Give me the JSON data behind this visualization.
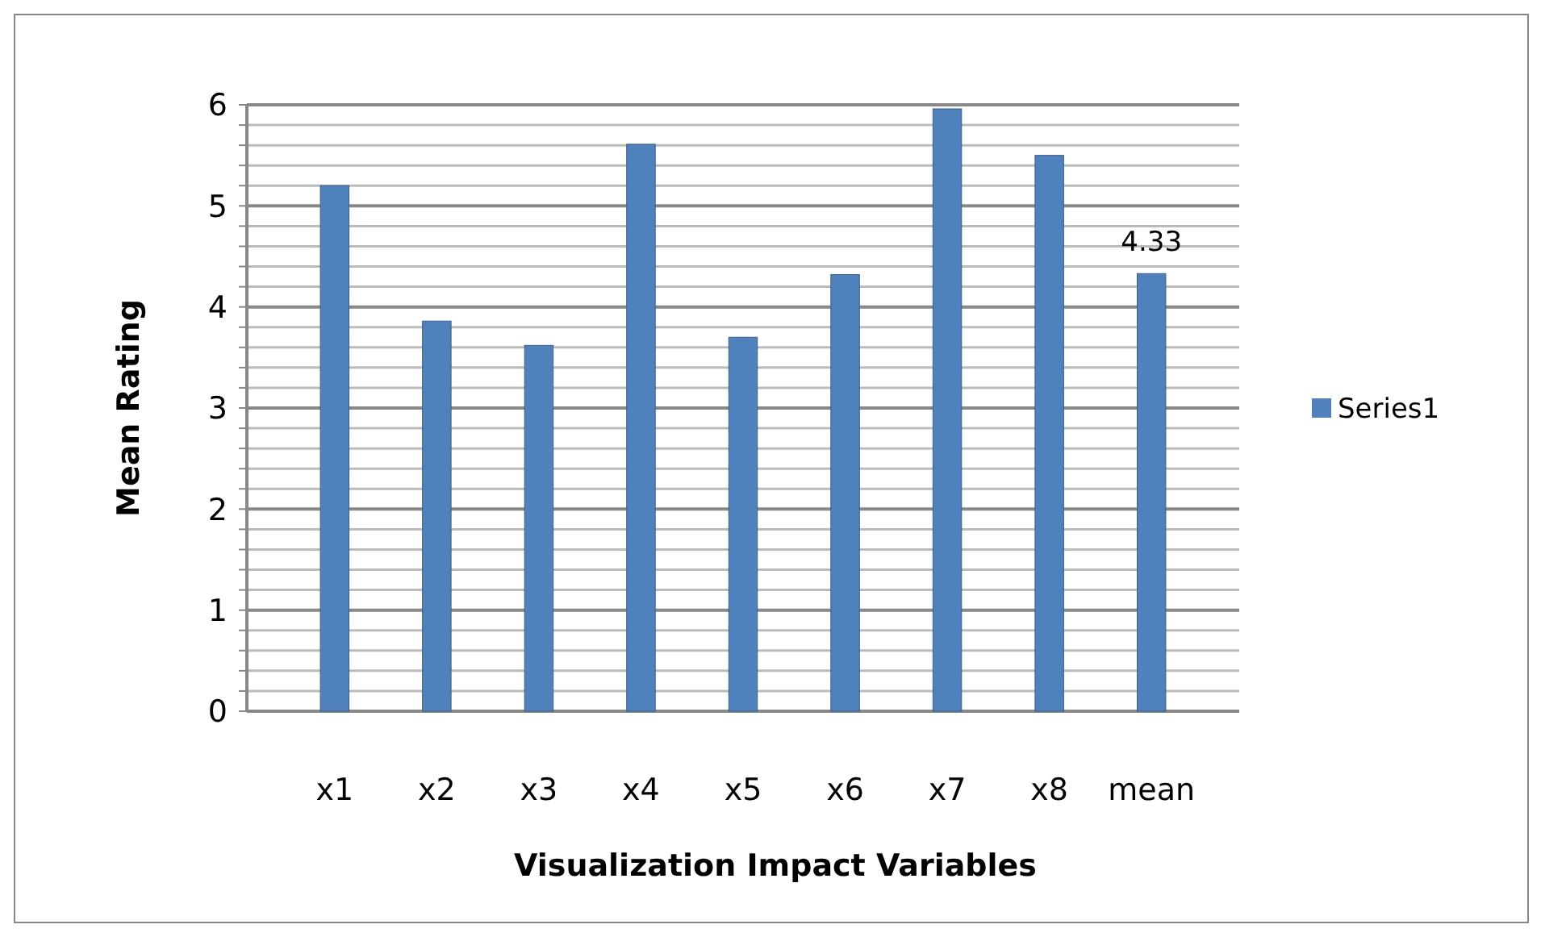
{
  "chart_data": {
    "type": "bar",
    "xlabel": "Visualization Impact Variables",
    "ylabel": "Mean Rating",
    "categories": [
      "x1",
      "x2",
      "x3",
      "x4",
      "x5",
      "x6",
      "x7",
      "x8",
      "mean"
    ],
    "series": [
      {
        "name": "Series1",
        "color": "#4f81bd",
        "values": [
          5.2,
          3.86,
          3.62,
          5.61,
          3.7,
          4.32,
          5.96,
          5.5,
          4.33
        ],
        "value_labels": [
          null,
          null,
          null,
          null,
          null,
          null,
          null,
          null,
          "4.33"
        ]
      }
    ],
    "ylim": [
      0,
      6
    ],
    "yticks": [
      0,
      {
        "value": 0.2,
        "label": null
      },
      {
        "value": 0.4,
        "label": null
      },
      {
        "value": 0.6,
        "label": null
      },
      {
        "value": 0.8,
        "label": null
      },
      1,
      {
        "value": 1.2,
        "label": null
      },
      {
        "value": 1.4,
        "label": null
      },
      {
        "value": 1.6,
        "label": null
      },
      {
        "value": 1.8,
        "label": null
      },
      2,
      {
        "value": 2.2,
        "label": null
      },
      {
        "value": 2.4,
        "label": null
      },
      {
        "value": 2.6,
        "label": null
      },
      {
        "value": 2.8,
        "label": null
      },
      3,
      {
        "value": 3.2,
        "label": null
      },
      {
        "value": 3.4,
        "label": null
      },
      {
        "value": 3.6,
        "label": null
      },
      {
        "value": 3.8,
        "label": null
      },
      4,
      {
        "value": 4.2,
        "label": null
      },
      {
        "value": 4.4,
        "label": null
      },
      {
        "value": 4.6,
        "label": null
      },
      {
        "value": 4.8,
        "label": null
      },
      5,
      {
        "value": 5.2,
        "label": null
      },
      {
        "value": 5.4,
        "label": null
      },
      {
        "value": 5.6,
        "label": null
      },
      {
        "value": 5.8,
        "label": null
      },
      6
    ],
    "grid": true,
    "legend": "right"
  }
}
